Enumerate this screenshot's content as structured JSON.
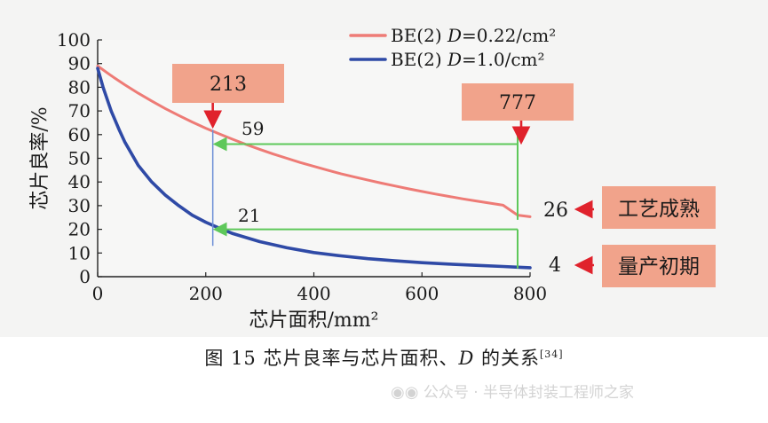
{
  "chart_data": {
    "type": "line",
    "title": "",
    "xlabel": "芯片面积/mm²",
    "ylabel": "芯片良率/%",
    "xlim": [
      0,
      800
    ],
    "ylim": [
      0,
      100
    ],
    "x_ticks": [
      0,
      200,
      400,
      600,
      800
    ],
    "y_ticks": [
      0,
      10,
      20,
      30,
      40,
      50,
      60,
      70,
      80,
      90,
      100
    ],
    "grid": false,
    "legend_position": "top-right",
    "series": [
      {
        "name": "BE(2) D=0.22/cm²",
        "legend_text": "BE(2) ",
        "legend_italic": "D",
        "legend_rest": "=0.22/cm²",
        "color": "#ee7b76",
        "x": [
          0,
          25,
          50,
          75,
          100,
          125,
          150,
          175,
          200,
          225,
          250,
          275,
          300,
          325,
          350,
          375,
          400,
          425,
          450,
          475,
          500,
          525,
          550,
          575,
          600,
          625,
          650,
          675,
          700,
          725,
          750,
          777,
          800
        ],
        "y": [
          89,
          84.9,
          81.1,
          77.5,
          74.2,
          71.0,
          68.1,
          65.3,
          62.7,
          60.3,
          58.0,
          55.8,
          53.8,
          51.8,
          50.0,
          48.2,
          46.6,
          45.0,
          43.5,
          42.1,
          40.8,
          39.5,
          38.3,
          37.1,
          36.0,
          34.9,
          33.9,
          32.9,
          32.0,
          31.1,
          30.2,
          26,
          25.3
        ]
      },
      {
        "name": "BE(2) D=1.0/cm²",
        "legend_text": "BE(2) ",
        "legend_italic": "D",
        "legend_rest": "=1.0/cm²",
        "color": "#2f4aa6",
        "x": [
          0,
          10,
          25,
          40,
          50,
          75,
          100,
          125,
          150,
          175,
          200,
          225,
          250,
          300,
          350,
          400,
          450,
          500,
          550,
          600,
          650,
          700,
          750,
          777,
          800
        ],
        "y": [
          88,
          80,
          70,
          62,
          57,
          47,
          40,
          34.5,
          30,
          26,
          23,
          20.5,
          18.2,
          14.8,
          12.2,
          10.2,
          8.8,
          7.6,
          6.7,
          5.9,
          5.3,
          4.8,
          4.3,
          4,
          3.8
        ]
      }
    ],
    "annotations": {
      "box_213": "213",
      "box_777": "777",
      "label_59": "59",
      "label_21": "21",
      "label_26": "26",
      "label_4": "4",
      "tag_mature": "工艺成熟",
      "tag_early": "量产初期",
      "x_213": 213,
      "x_777": 777,
      "y_59": 59,
      "y_21": 21,
      "y_26": 26,
      "y_4": 4
    },
    "colors": {
      "box": "#f1a38b",
      "arrow_red": "#e0222c",
      "guide_green": "#5ec85a",
      "guide_blue": "#6d8fd6",
      "axis": "#222222"
    }
  },
  "caption": {
    "prefix": "图 15  芯片良率与芯片面积、",
    "italic": "D",
    "suffix": " 的关系",
    "ref": "[34]"
  },
  "watermark": {
    "text": "公众号 · 半导体封装工程师之家"
  }
}
